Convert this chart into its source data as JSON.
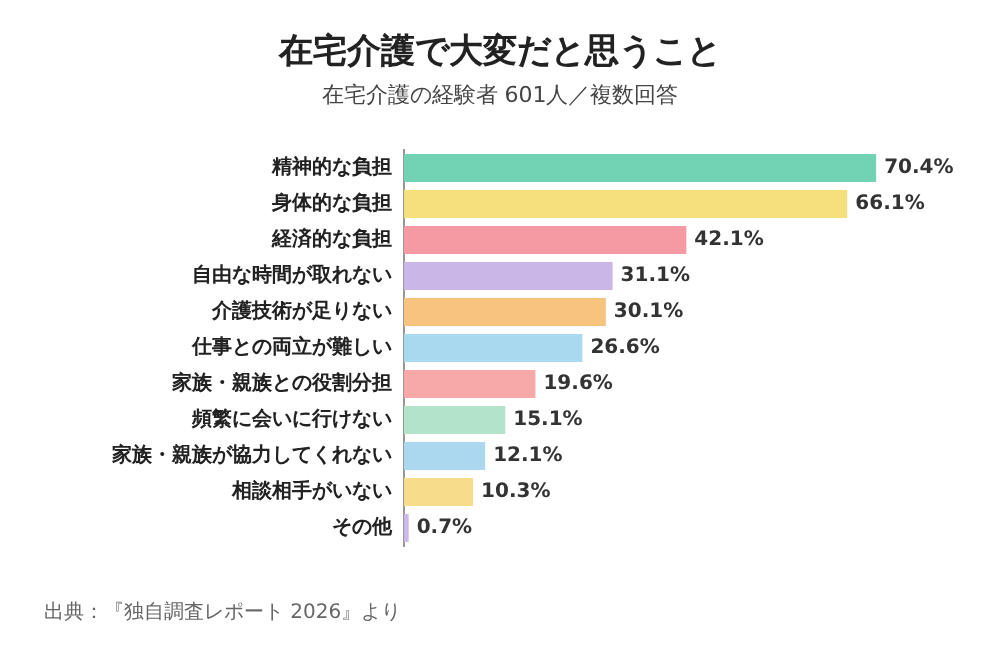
{
  "chart_data": {
    "type": "bar",
    "orientation": "horizontal",
    "title": "在宅介護で大変だと思うこと",
    "subtitle": "在宅介護の経験者 601人／複数回答",
    "categories": [
      "精神的な負担",
      "身体的な負担",
      "経済的な負担",
      "自由な時間が取れない",
      "介護技術が足りない",
      "仕事との両立が難しい",
      "家族・親族との役割分担",
      "頻繁に会いに行けない",
      "家族・親族が協力してくれない",
      "相談相手がいない",
      "その他"
    ],
    "values": [
      70.4,
      66.1,
      42.1,
      31.1,
      30.1,
      26.6,
      19.6,
      15.1,
      12.1,
      10.3,
      0.7
    ],
    "value_labels": [
      "70.4%",
      "66.1%",
      "42.1%",
      "31.1%",
      "30.1%",
      "26.6%",
      "19.6%",
      "15.1%",
      "12.1%",
      "10.3%",
      "0.7%"
    ],
    "colors": [
      "#72d3b4",
      "#f6e07e",
      "#f59aa2",
      "#cbb6e8",
      "#f6c47e",
      "#a9d9ef",
      "#f7a9aa",
      "#b3e4c9",
      "#acd8ef",
      "#f7dc8c",
      "#cbb9e9"
    ],
    "legend": false,
    "annotations": [
      "出典：『独自調査レポート 2026』より"
    ]
  }
}
